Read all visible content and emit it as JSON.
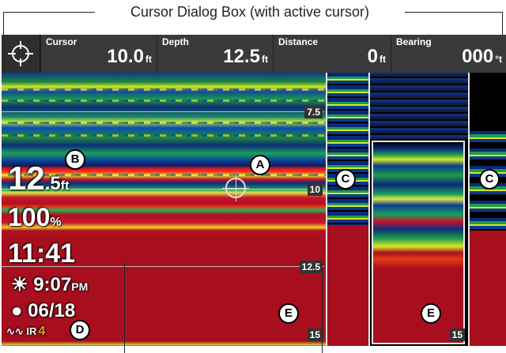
{
  "caption": "Cursor Dialog Box (with active cursor)",
  "topbar": {
    "fields": [
      {
        "label": "Cursor",
        "value": "10.0",
        "unit": "ft"
      },
      {
        "label": "Depth",
        "value": "12.5",
        "unit": "ft"
      },
      {
        "label": "Distance",
        "value": "0",
        "unit": "ft"
      },
      {
        "label": "Bearing",
        "value": "000",
        "unit": "°t"
      }
    ]
  },
  "depth_scale": [
    "7.5",
    "10",
    "12.5",
    "15",
    "15"
  ],
  "readouts": {
    "depth_int": "12",
    "depth_dec": ".5",
    "depth_unit": "ft",
    "percent": "100",
    "percent_unit": "%",
    "clock": "11:41",
    "sunset_time": "9:07",
    "sunset_ampm": "PM",
    "date": "06/18",
    "ir_label": "IR",
    "ir_value": "4"
  },
  "callouts": [
    "A",
    "B",
    "C",
    "C",
    "D",
    "E",
    "E"
  ],
  "icons": {
    "cursor": "crosshair-icon",
    "sun": "sun-icon",
    "moon": "moon-icon",
    "wave": "wave-icon"
  },
  "colors": {
    "topbar": "#3a3a3a",
    "bottom_return": "#a80f1e",
    "ir_accent": "#f0a020"
  }
}
